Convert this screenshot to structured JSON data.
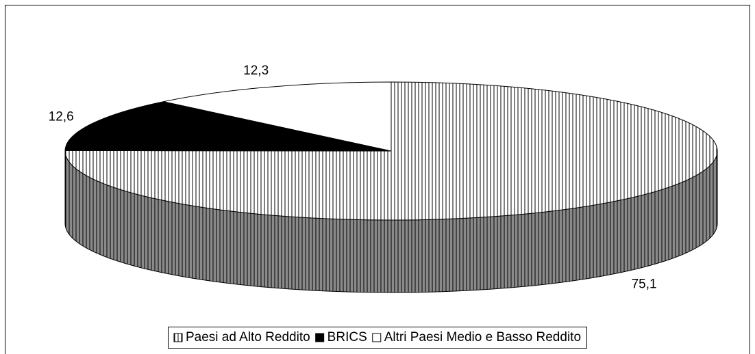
{
  "chart_data": {
    "type": "pie3d",
    "categories": [
      "Paesi ad Alto Reddito",
      "BRICS",
      "Altri Paesi Medio e Basso Reddito"
    ],
    "values": [
      75.1,
      12.6,
      12.3
    ],
    "value_labels": [
      "75,1",
      "12,6",
      "12,3"
    ],
    "colors": [
      "#ffffff",
      "#000000",
      "#ffffff"
    ],
    "hatch": [
      true,
      false,
      false
    ],
    "legend": "bottom"
  }
}
